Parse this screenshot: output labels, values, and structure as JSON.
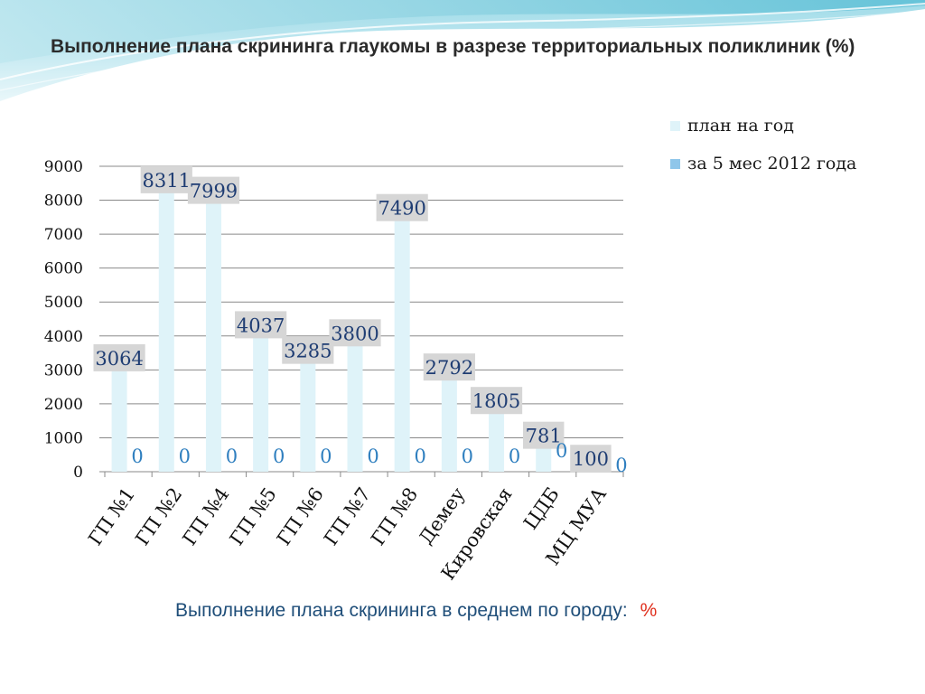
{
  "slide": {
    "title": "Выполнение плана скрининга глаукомы в разрезе территориальных поликлиник (%)",
    "footer_text": "Выполнение плана скрининга в среднем по городу:",
    "footer_unit": "%"
  },
  "colors": {
    "plan": "#dff3f9",
    "actual": "#8fc6ea",
    "label_box": "#d6d6d6",
    "label_text": "#1f3d73",
    "zero_label": "#2f7fbf",
    "grid": "#8a8a8a"
  },
  "chart_data": {
    "type": "bar",
    "categories": [
      "ГП №1",
      "ГП №2",
      "ГП №4",
      "ГП №5",
      "ГП №6",
      "ГП  №7",
      "ГП №8",
      "Демеу",
      "Кировская",
      "ЦДБ",
      "МЦ МУА"
    ],
    "series": [
      {
        "name": "план на год",
        "values": [
          3064,
          8311,
          7999,
          4037,
          3285,
          3800,
          7490,
          2792,
          1805,
          781,
          100
        ],
        "labels": [
          "3064",
          "8311",
          "7999",
          "4037",
          "3285",
          "3800",
          "7490",
          "2792",
          "1805",
          "781",
          "100"
        ]
      },
      {
        "name": "за 5 мес 2012 года",
        "values": [
          0,
          0,
          0,
          0,
          0,
          0,
          0,
          0,
          0,
          0,
          0
        ],
        "labels": [
          "0",
          "0",
          "0",
          "0",
          "0",
          "0",
          "0",
          "0",
          "0",
          "0",
          "0"
        ]
      }
    ],
    "ylim": [
      0,
      9000
    ],
    "yticks": [
      "0",
      "1000",
      "2000",
      "3000",
      "4000",
      "5000",
      "6000",
      "7000",
      "8000",
      "9000"
    ],
    "grid": true,
    "legend_position": "top-right"
  }
}
